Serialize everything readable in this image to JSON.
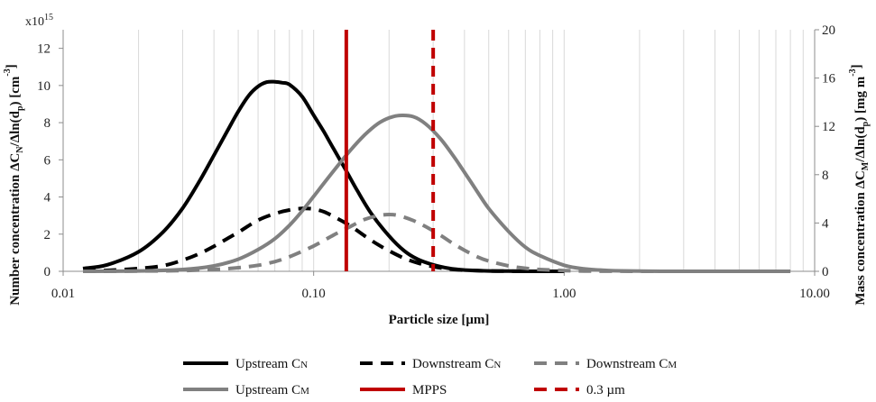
{
  "chart_data": {
    "type": "line",
    "xscale": "log",
    "xlim": [
      0.01,
      10
    ],
    "xticks": [
      "0.01",
      "0.10",
      "1.00",
      "10.00"
    ],
    "xlabel": "Particle size [μm]",
    "y_left": {
      "label_parts": [
        "Number concentration ΔC",
        "N",
        "/Δln(d",
        "p",
        ") [cm",
        "-3",
        "]"
      ],
      "multiplier_base": "x10",
      "multiplier_exp": "15",
      "ylim": [
        0,
        13
      ],
      "ticks": [
        0,
        2,
        4,
        6,
        8,
        10,
        12
      ]
    },
    "y_right": {
      "label_parts": [
        "Mass concentration ΔC",
        "M",
        "/Δln(d",
        "p",
        ") [mg m",
        "-3",
        "]"
      ],
      "ylim": [
        0,
        20
      ],
      "ticks": [
        0,
        4,
        8,
        12,
        16,
        20
      ]
    },
    "grid": "vertical minor/major lines at log decades",
    "series": [
      {
        "name": "Upstream CN",
        "name_main": "Upstream C",
        "name_sub": "N",
        "axis": "left",
        "color": "#000000",
        "dash": "solid",
        "x": [
          0.012,
          0.015,
          0.02,
          0.025,
          0.03,
          0.035,
          0.04,
          0.045,
          0.05,
          0.055,
          0.06,
          0.065,
          0.07,
          0.075,
          0.08,
          0.09,
          0.1,
          0.11,
          0.12,
          0.135,
          0.15,
          0.17,
          0.2,
          0.23,
          0.26,
          0.3,
          0.35,
          0.4,
          0.5,
          0.6,
          0.8,
          1.0
        ],
        "values": [
          0.15,
          0.35,
          1.05,
          2.1,
          3.4,
          4.85,
          6.25,
          7.5,
          8.6,
          9.45,
          9.95,
          10.18,
          10.2,
          10.15,
          10.05,
          9.4,
          8.4,
          7.5,
          6.6,
          5.4,
          4.3,
          3.1,
          1.9,
          1.1,
          0.65,
          0.35,
          0.15,
          0.07,
          0.02,
          0.01,
          0,
          0
        ]
      },
      {
        "name": "Downstream CN",
        "name_main": "Downstream C",
        "name_sub": "N",
        "axis": "left",
        "color": "#000000",
        "dash": "dashed",
        "x": [
          0.012,
          0.015,
          0.02,
          0.025,
          0.03,
          0.035,
          0.04,
          0.05,
          0.06,
          0.07,
          0.08,
          0.09,
          0.1,
          0.11,
          0.12,
          0.14,
          0.16,
          0.18,
          0.2,
          0.23,
          0.26,
          0.3,
          0.35,
          0.4,
          0.5,
          0.6,
          0.8,
          1.0
        ],
        "values": [
          0.02,
          0.05,
          0.15,
          0.3,
          0.6,
          0.95,
          1.35,
          2.1,
          2.75,
          3.1,
          3.3,
          3.38,
          3.35,
          3.2,
          2.95,
          2.45,
          1.9,
          1.45,
          1.1,
          0.7,
          0.45,
          0.25,
          0.12,
          0.06,
          0.02,
          0.01,
          0,
          0
        ]
      },
      {
        "name": "Downstream CM",
        "name_main": "Downstream C",
        "name_sub": "M",
        "axis": "right",
        "color": "#808080",
        "dash": "dashed",
        "x": [
          0.012,
          0.02,
          0.03,
          0.04,
          0.05,
          0.06,
          0.07,
          0.08,
          0.1,
          0.12,
          0.14,
          0.16,
          0.18,
          0.2,
          0.22,
          0.25,
          0.28,
          0.32,
          0.36,
          0.4,
          0.45,
          0.5,
          0.6,
          0.7,
          0.8,
          1.0,
          1.2,
          1.5,
          2.0,
          3.0,
          8.0
        ],
        "values": [
          0,
          0.02,
          0.06,
          0.15,
          0.3,
          0.5,
          0.8,
          1.2,
          2.1,
          3.0,
          3.7,
          4.3,
          4.6,
          4.7,
          4.6,
          4.2,
          3.7,
          3.0,
          2.3,
          1.75,
          1.2,
          0.85,
          0.45,
          0.25,
          0.15,
          0.06,
          0.02,
          0.01,
          0,
          0,
          0
        ]
      },
      {
        "name": "Upstream CM",
        "name_main": "Upstream C",
        "name_sub": "M",
        "axis": "right",
        "color": "#808080",
        "dash": "solid",
        "x": [
          0.012,
          0.02,
          0.03,
          0.04,
          0.05,
          0.06,
          0.07,
          0.08,
          0.09,
          0.1,
          0.12,
          0.14,
          0.16,
          0.18,
          0.2,
          0.22,
          0.25,
          0.28,
          0.32,
          0.36,
          0.4,
          0.45,
          0.5,
          0.6,
          0.7,
          0.8,
          1.0,
          1.2,
          1.5,
          2.0,
          3.0,
          8.0
        ],
        "values": [
          0,
          0.03,
          0.15,
          0.45,
          1.0,
          1.8,
          2.7,
          3.8,
          5.0,
          6.2,
          8.3,
          10.0,
          11.3,
          12.2,
          12.7,
          12.9,
          12.8,
          12.2,
          11.0,
          9.6,
          8.2,
          6.6,
          5.2,
          3.3,
          2.0,
          1.3,
          0.5,
          0.2,
          0.07,
          0.02,
          0,
          0
        ]
      }
    ],
    "vlines": [
      {
        "name": "MPPS",
        "x": 0.135,
        "color": "#c00000",
        "dash": "solid"
      },
      {
        "name": "0.3 µm",
        "x": 0.3,
        "color": "#c00000",
        "dash": "dashed"
      }
    ]
  }
}
